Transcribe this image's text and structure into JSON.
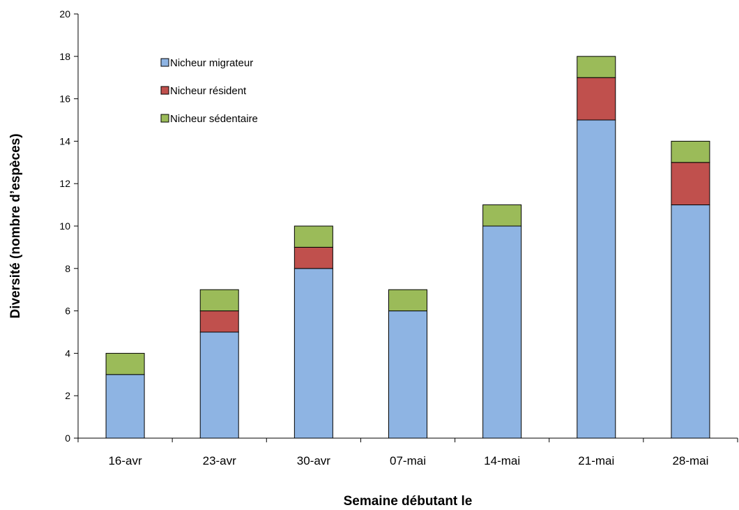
{
  "chart_data": {
    "type": "bar",
    "stacked": true,
    "categories": [
      "16-avr",
      "23-avr",
      "30-avr",
      "07-mai",
      "14-mai",
      "21-mai",
      "28-mai"
    ],
    "series": [
      {
        "name": "Nicheur migrateur",
        "values": [
          3,
          5,
          8,
          6,
          10,
          15,
          11
        ],
        "color": "#8EB4E3"
      },
      {
        "name": "Nicheur résident",
        "values": [
          0,
          1,
          1,
          0,
          0,
          2,
          2
        ],
        "color": "#C0504D"
      },
      {
        "name": "Nicheur sédentaire",
        "values": [
          1,
          1,
          1,
          1,
          1,
          1,
          1
        ],
        "color": "#9BBB59"
      }
    ],
    "xlabel": "Semaine débutant le",
    "ylabel": "Diversité (nombre d’espèces)",
    "ylim": [
      0,
      20
    ],
    "yticks": [
      0,
      2,
      4,
      6,
      8,
      10,
      12,
      14,
      16,
      18,
      20
    ],
    "grid": false,
    "legend_position": "top-left"
  }
}
